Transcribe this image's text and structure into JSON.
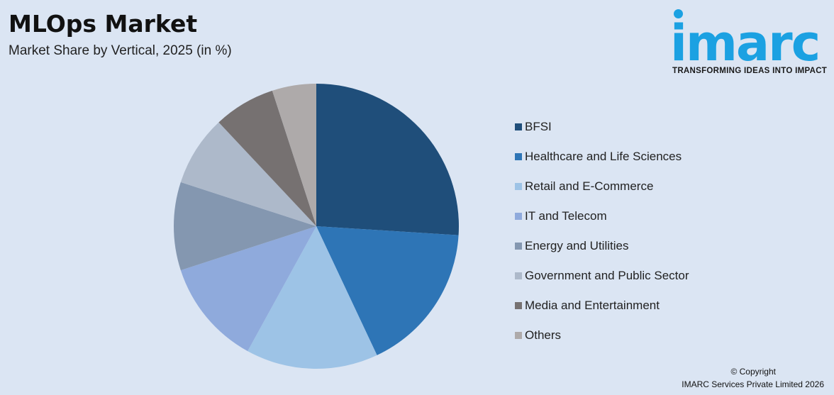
{
  "header": {
    "title": "MLOps Market",
    "subtitle": "Market Share by Vertical, 2025 (in %)"
  },
  "logo": {
    "wordmark": "imarc",
    "tagline": "TRANSFORMING IDEAS INTO IMPACT",
    "color": "#1ba1e2"
  },
  "footer": {
    "copyright_line1": "© Copyright",
    "copyright_line2": "IMARC Services Private Limited 2026"
  },
  "chart_data": {
    "type": "pie",
    "categories": [
      "BFSI",
      "Healthcare and Life Sciences",
      "Retail and E-Commerce",
      "IT and Telecom",
      "Energy and Utilities",
      "Government and Public Sector",
      "Media and Entertainment",
      "Others"
    ],
    "values": [
      26,
      17,
      15,
      12,
      10,
      8,
      7,
      5
    ],
    "colors": [
      "#1f4e7a",
      "#2e75b6",
      "#9dc3e6",
      "#8faadc",
      "#8497b0",
      "#adb9ca",
      "#767171",
      "#aeaaaa"
    ],
    "legend_position": "right"
  }
}
